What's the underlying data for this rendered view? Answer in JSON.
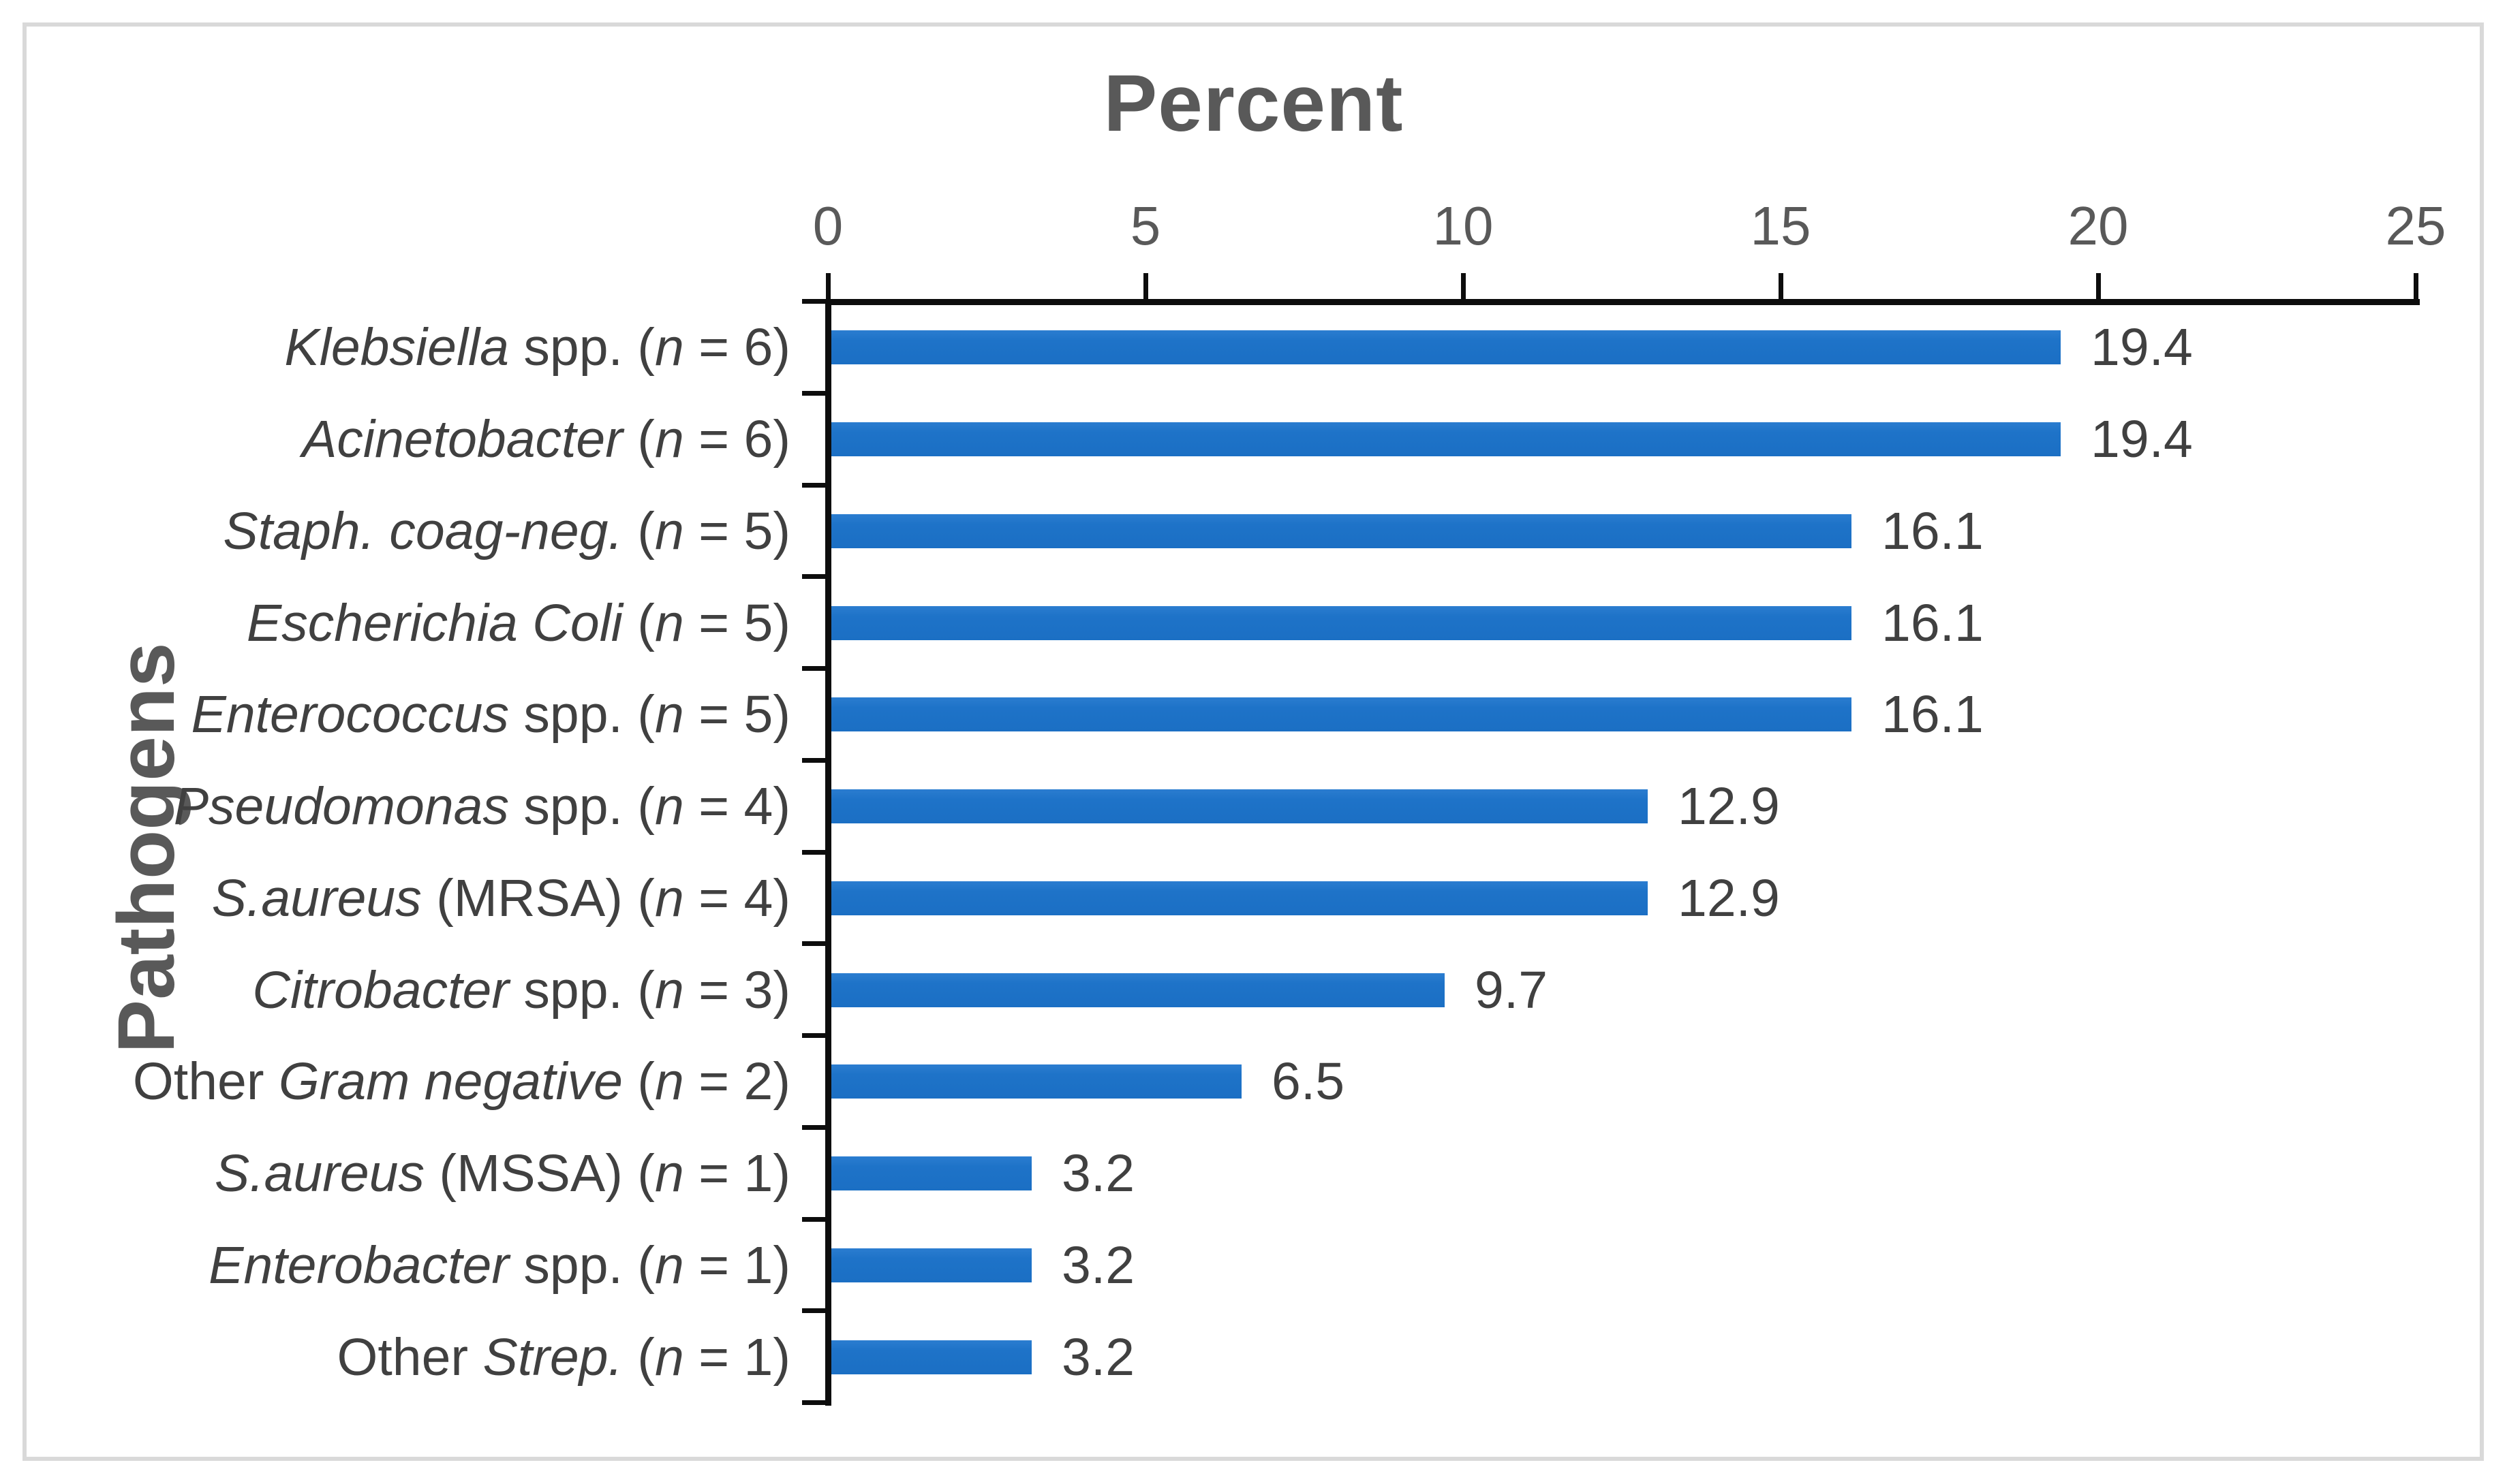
{
  "figure": {
    "background": "#ffffff",
    "frame_color": "#d9d9d9"
  },
  "colors": {
    "bar": "#1e73c8",
    "axis": "#0d0d0d",
    "label_text": "#404040",
    "title_text": "#595959"
  },
  "chart_data": {
    "type": "bar",
    "orientation": "horizontal",
    "title": "Percent",
    "ylabel": "Pathogens",
    "xlabel": "",
    "xlim": [
      0,
      25
    ],
    "xticks": [
      "0",
      "5",
      "10",
      "15",
      "20",
      "25"
    ],
    "xtick_values": [
      0,
      5,
      10,
      15,
      20,
      25
    ],
    "grid": false,
    "legend_visible": false,
    "bar_color": "#1e73c8",
    "categories": [
      "Klebsiella spp. (n = 6)",
      "Acinetobacter (n = 6)",
      "Staph. coag-neg. (n = 5)",
      "Escherichia Coli (n = 5)",
      "Enterococcus spp. (n = 5)",
      "Pseudomonas spp. (n = 4)",
      "S.aureus (MRSA) (n = 4)",
      "Citrobacter spp. (n = 3)",
      "Other Gram negative (n = 2)",
      "S.aureus (MSSA) (n = 1)",
      "Enterobacter spp. (n = 1)",
      "Other Strep. (n = 1)"
    ],
    "label_runs": [
      [
        [
          "Klebsiella",
          true
        ],
        [
          " spp. (",
          false
        ],
        [
          "n",
          true
        ],
        [
          " = 6)",
          false
        ]
      ],
      [
        [
          "Acinetobacter",
          true
        ],
        [
          " (",
          false
        ],
        [
          "n",
          true
        ],
        [
          " = 6)",
          false
        ]
      ],
      [
        [
          "Staph. coag-neg.",
          true
        ],
        [
          " (",
          false
        ],
        [
          "n",
          true
        ],
        [
          " = 5)",
          false
        ]
      ],
      [
        [
          "Escherichia Coli",
          true
        ],
        [
          " (",
          false
        ],
        [
          "n",
          true
        ],
        [
          " = 5)",
          false
        ]
      ],
      [
        [
          "Enterococcus",
          true
        ],
        [
          " spp. (",
          false
        ],
        [
          "n",
          true
        ],
        [
          " = 5)",
          false
        ]
      ],
      [
        [
          "Pseudomonas",
          true
        ],
        [
          " spp. (",
          false
        ],
        [
          "n",
          true
        ],
        [
          " = 4)",
          false
        ]
      ],
      [
        [
          "S.aureus",
          true
        ],
        [
          " (MRSA) (",
          false
        ],
        [
          "n",
          true
        ],
        [
          " = 4)",
          false
        ]
      ],
      [
        [
          "Citrobacter",
          true
        ],
        [
          " spp. (",
          false
        ],
        [
          "n",
          true
        ],
        [
          " = 3)",
          false
        ]
      ],
      [
        [
          "Other ",
          false
        ],
        [
          "Gram negative",
          true
        ],
        [
          " (",
          false
        ],
        [
          "n",
          true
        ],
        [
          " = 2)",
          false
        ]
      ],
      [
        [
          "S.aureus",
          true
        ],
        [
          " (MSSA) (",
          false
        ],
        [
          "n",
          true
        ],
        [
          " = 1)",
          false
        ]
      ],
      [
        [
          "Enterobacter",
          true
        ],
        [
          " spp. (",
          false
        ],
        [
          "n",
          true
        ],
        [
          " = 1)",
          false
        ]
      ],
      [
        [
          "Other ",
          false
        ],
        [
          "Strep.",
          true
        ],
        [
          " (",
          false
        ],
        [
          "n",
          true
        ],
        [
          " = 1)",
          false
        ]
      ]
    ],
    "values": [
      19.4,
      19.4,
      16.1,
      16.1,
      16.1,
      12.9,
      12.9,
      9.7,
      6.5,
      3.2,
      3.2,
      3.2
    ],
    "value_labels": [
      "19.4",
      "19.4",
      "16.1",
      "16.1",
      "16.1",
      "12.9",
      "12.9",
      "9.7",
      "6.5",
      "3.2",
      "3.2",
      "3.2"
    ]
  }
}
